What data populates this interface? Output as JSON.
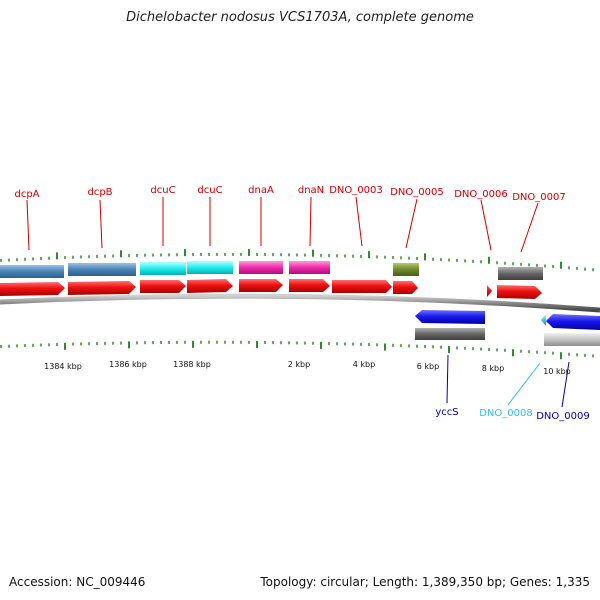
{
  "title": "Dichelobacter nodosus VCS1703A, complete genome",
  "accession_text": "Accession: NC_009446",
  "summary_text": "Topology: circular; Length: 1,389,350 bp; Genes: 1,335",
  "colors": {
    "backbone": "#8a8a8a",
    "tick": "#2e8b2e",
    "forward_gene": "#ee1111",
    "reverse_gene": "#1a1aee",
    "label_forward": "#cc0000",
    "label_reverse": "#0000aa",
    "label_light": "#33bbee"
  },
  "tick_labels": [
    "1384 kbp",
    "1386 kbp",
    "1388 kbp",
    "2 kbp",
    "4 kbp",
    "6 kbp",
    "8 kbp",
    "10 kbp"
  ],
  "top_labels": [
    "dcpA",
    "dcpB",
    "dcuC",
    "dcuC",
    "dnaA",
    "dnaN",
    "DNO_0003",
    "DNO_0005",
    "DNO_0006",
    "DNO_0007"
  ],
  "bottom_labels": [
    "yccS",
    "DNO_0008",
    "DNO_0009"
  ]
}
